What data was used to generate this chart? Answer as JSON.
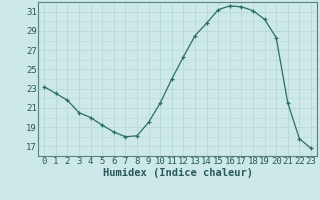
{
  "x": [
    0,
    1,
    2,
    3,
    4,
    5,
    6,
    7,
    8,
    9,
    10,
    11,
    12,
    13,
    14,
    15,
    16,
    17,
    18,
    19,
    20,
    21,
    22,
    23
  ],
  "y": [
    23.2,
    22.5,
    21.8,
    20.5,
    20.0,
    19.2,
    18.5,
    18.0,
    18.1,
    19.5,
    21.5,
    24.0,
    26.3,
    28.5,
    29.8,
    31.2,
    31.6,
    31.5,
    31.1,
    30.2,
    28.3,
    21.5,
    17.8,
    16.8
  ],
  "bg_color": "#cce8e8",
  "grid_major_color": "#b8d8d8",
  "grid_minor_color": "#cce8e8",
  "line_color": "#2a7060",
  "marker_color": "#2a7060",
  "xlabel": "Humidex (Indice chaleur)",
  "ylim": [
    16.0,
    32.0
  ],
  "xlim": [
    -0.5,
    23.5
  ],
  "yticks": [
    17,
    19,
    21,
    23,
    25,
    27,
    29,
    31
  ],
  "xticks": [
    0,
    1,
    2,
    3,
    4,
    5,
    6,
    7,
    8,
    9,
    10,
    11,
    12,
    13,
    14,
    15,
    16,
    17,
    18,
    19,
    20,
    21,
    22,
    23
  ],
  "xlabel_fontsize": 7.5,
  "tick_fontsize": 6.5,
  "spine_color": "#5a8080"
}
